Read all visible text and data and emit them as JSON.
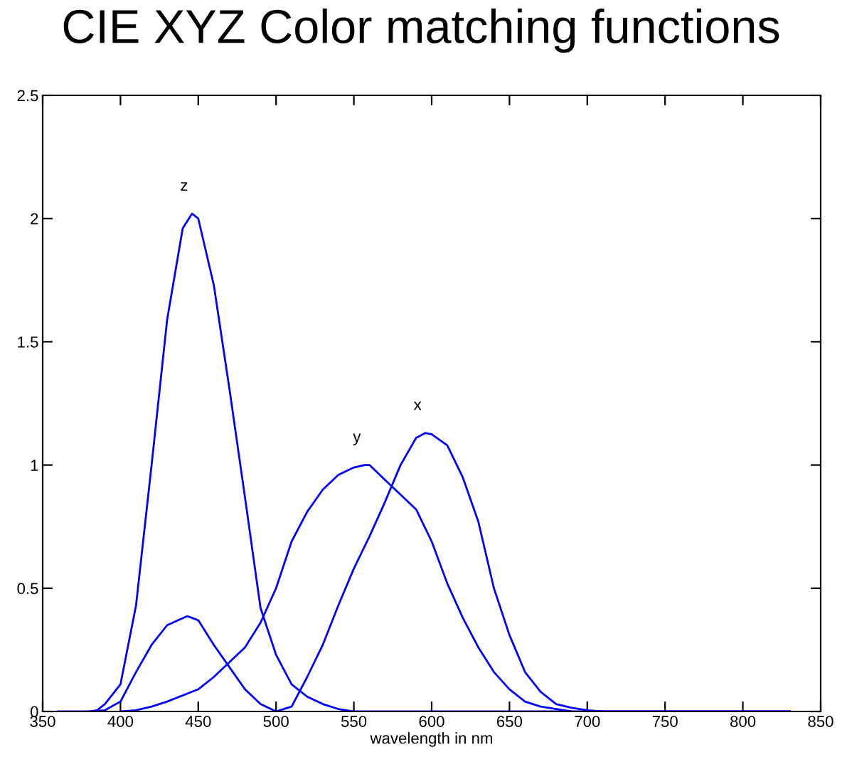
{
  "chart_data": {
    "type": "line",
    "title": "CIE XYZ Color matching functions",
    "xlabel": "wavelength in nm",
    "xlim": [
      350,
      850
    ],
    "xticks": [
      350,
      400,
      450,
      500,
      550,
      600,
      650,
      700,
      750,
      800,
      850
    ],
    "ylim": [
      0,
      2.5
    ],
    "yticks": [
      0,
      0.5,
      1,
      1.5,
      2,
      2.5
    ],
    "grid": false,
    "marker": "none",
    "line_style": "solid",
    "series": [
      {
        "name": "x",
        "color": "#0000ff",
        "x": [
          360,
          370,
          380,
          390,
          400,
          410,
          420,
          430,
          443,
          450,
          460,
          470,
          480,
          490,
          500,
          510,
          520,
          530,
          540,
          550,
          560,
          570,
          580,
          590,
          596,
          600,
          610,
          620,
          630,
          640,
          650,
          660,
          670,
          680,
          690,
          700,
          710,
          720,
          830
        ],
        "values": [
          0,
          0,
          0,
          0.005,
          0.04,
          0.16,
          0.27,
          0.35,
          0.387,
          0.37,
          0.27,
          0.18,
          0.09,
          0.03,
          0,
          0.02,
          0.14,
          0.27,
          0.43,
          0.58,
          0.71,
          0.85,
          1.0,
          1.11,
          1.13,
          1.125,
          1.08,
          0.95,
          0.77,
          0.5,
          0.31,
          0.16,
          0.08,
          0.03,
          0.015,
          0.005,
          0,
          0,
          0
        ]
      },
      {
        "name": "y",
        "color": "#0000ff",
        "x": [
          400,
          410,
          420,
          430,
          440,
          450,
          460,
          470,
          480,
          490,
          500,
          510,
          520,
          530,
          540,
          550,
          557,
          560,
          570,
          580,
          590,
          600,
          610,
          620,
          630,
          640,
          650,
          660,
          670,
          680,
          690
        ],
        "values": [
          0,
          0.005,
          0.02,
          0.04,
          0.065,
          0.09,
          0.14,
          0.2,
          0.26,
          0.36,
          0.5,
          0.69,
          0.81,
          0.9,
          0.96,
          0.99,
          1.0,
          1.0,
          0.94,
          0.88,
          0.82,
          0.69,
          0.52,
          0.38,
          0.26,
          0.16,
          0.09,
          0.04,
          0.02,
          0.01,
          0
        ]
      },
      {
        "name": "z",
        "color": "#0000ff",
        "x": [
          380,
          385,
          390,
          400,
          410,
          420,
          430,
          440,
          446,
          450,
          460,
          470,
          480,
          490,
          500,
          510,
          520,
          530,
          540,
          550,
          560,
          830
        ],
        "values": [
          0,
          0.005,
          0.03,
          0.11,
          0.43,
          1.0,
          1.59,
          1.96,
          2.02,
          2.0,
          1.73,
          1.31,
          0.87,
          0.42,
          0.23,
          0.11,
          0.06,
          0.03,
          0.01,
          0,
          0,
          0
        ]
      }
    ]
  }
}
